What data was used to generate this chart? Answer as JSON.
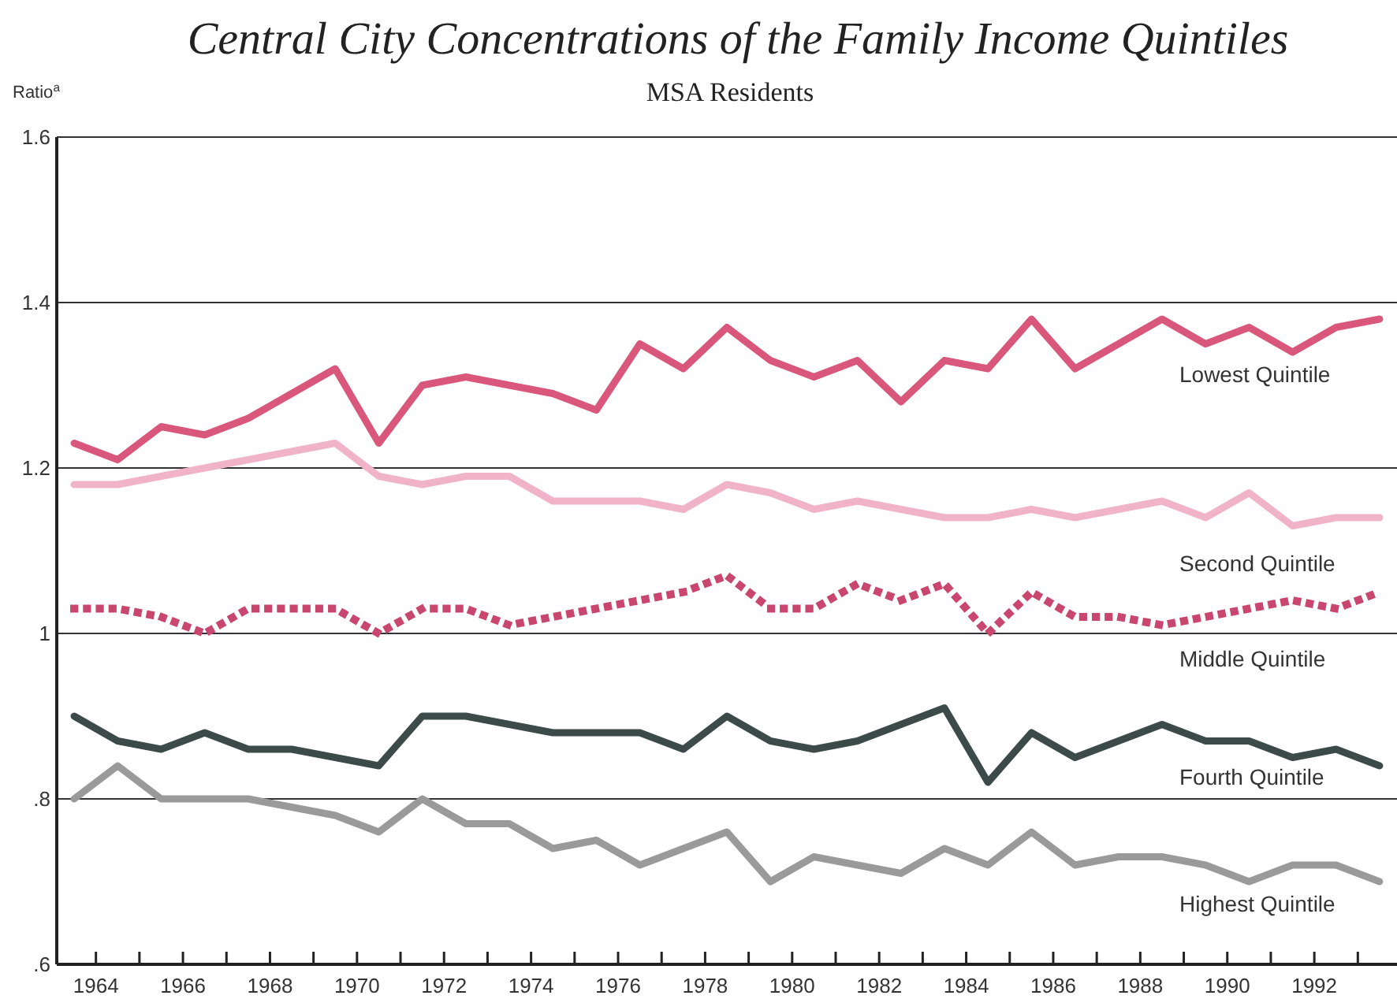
{
  "chart_data": {
    "type": "line",
    "title": "Central City Concentrations of the Family Income Quintiles",
    "subtitle": "MSA Residents",
    "ylabel": "Ratio$^{a}$",
    "x": [
      1963.5,
      1964.5,
      1965.5,
      1966.5,
      1967.5,
      1968.5,
      1969.5,
      1970.5,
      1971.5,
      1972.5,
      1973.5,
      1974.5,
      1975.5,
      1976.5,
      1977.5,
      1978.5,
      1979.5,
      1980.5,
      1981.5,
      1982.5,
      1983.5,
      1984.5,
      1985.5,
      1986.5,
      1987.5,
      1988.5,
      1989.5,
      1990.5,
      1991.5,
      1992.5,
      1993.5
    ],
    "xlim": [
      1963.1,
      1993.9
    ],
    "xticks": [
      1964,
      {
        "value": 1965,
        "label": null
      },
      1966,
      {
        "value": 1967,
        "label": null
      },
      1968,
      {
        "value": 1969,
        "label": null
      },
      1970,
      {
        "value": 1971,
        "label": null
      },
      1972,
      {
        "value": 1973,
        "label": null
      },
      1974,
      {
        "value": 1975,
        "label": null
      },
      1976,
      {
        "value": 1977,
        "label": null
      },
      1978,
      {
        "value": 1979,
        "label": null
      },
      1980,
      {
        "value": 1981,
        "label": null
      },
      1982,
      {
        "value": 1983,
        "label": null
      },
      1984,
      {
        "value": 1985,
        "label": null
      },
      1986,
      {
        "value": 1987,
        "label": null
      },
      1988,
      {
        "value": 1989,
        "label": null
      },
      1990,
      {
        "value": 1991,
        "label": null
      },
      1992,
      {
        "value": 1993,
        "label": null
      }
    ],
    "ylim": [
      0.6,
      1.6
    ],
    "yticks": [
      {
        "value": 0.6,
        "label": ".6"
      },
      {
        "value": 0.8,
        "label": ".8"
      },
      1,
      1.2,
      1.4,
      1.6
    ],
    "grid": "y",
    "legend": false,
    "series": [
      {
        "name": "Lowest Quintile",
        "color": "#d9577a",
        "line_style": "solid",
        "values": [
          1.23,
          1.21,
          1.25,
          1.24,
          1.26,
          1.29,
          1.32,
          1.23,
          1.3,
          1.31,
          1.3,
          1.29,
          1.27,
          1.35,
          1.32,
          1.37,
          1.33,
          1.31,
          1.33,
          1.28,
          1.33,
          1.32,
          1.38,
          1.32,
          1.35,
          1.38,
          1.35,
          1.37,
          1.34,
          1.37,
          1.38
        ]
      },
      {
        "name": "Second Quintile",
        "color": "#f0b3c8",
        "line_style": "solid",
        "values": [
          1.18,
          1.18,
          1.19,
          1.2,
          1.21,
          1.22,
          1.23,
          1.19,
          1.18,
          1.19,
          1.19,
          1.16,
          1.16,
          1.16,
          1.15,
          1.18,
          1.17,
          1.15,
          1.16,
          1.15,
          1.14,
          1.14,
          1.15,
          1.14,
          1.15,
          1.16,
          1.14,
          1.17,
          1.13,
          1.14,
          1.14
        ]
      },
      {
        "name": "Middle Quintile",
        "color": "#c9466e",
        "line_style": "dotted",
        "values": [
          1.03,
          1.03,
          1.02,
          1.0,
          1.03,
          1.03,
          1.03,
          1.0,
          1.03,
          1.03,
          1.01,
          1.02,
          1.03,
          1.04,
          1.05,
          1.07,
          1.03,
          1.03,
          1.06,
          1.04,
          1.06,
          1.0,
          1.05,
          1.02,
          1.02,
          1.01,
          1.02,
          1.03,
          1.04,
          1.03,
          1.05
        ]
      },
      {
        "name": "Fourth Quintile",
        "color": "#3d4a4a",
        "line_style": "solid",
        "values": [
          0.9,
          0.87,
          0.86,
          0.88,
          0.86,
          0.86,
          0.85,
          0.84,
          0.9,
          0.9,
          0.89,
          0.88,
          0.88,
          0.88,
          0.86,
          0.9,
          0.87,
          0.86,
          0.87,
          0.89,
          0.91,
          0.82,
          0.88,
          0.85,
          0.87,
          0.89,
          0.87,
          0.87,
          0.85,
          0.86,
          0.84
        ]
      },
      {
        "name": "Highest Quintile",
        "color": "#9a9a9a",
        "line_style": "solid",
        "values": [
          0.8,
          0.84,
          0.8,
          0.8,
          0.8,
          0.79,
          0.78,
          0.76,
          0.8,
          0.77,
          0.77,
          0.74,
          0.75,
          0.72,
          0.74,
          0.76,
          0.7,
          0.73,
          0.72,
          0.71,
          0.74,
          0.72,
          0.76,
          0.72,
          0.73,
          0.73,
          0.72,
          0.7,
          0.72,
          0.72,
          0.7
        ]
      }
    ]
  }
}
